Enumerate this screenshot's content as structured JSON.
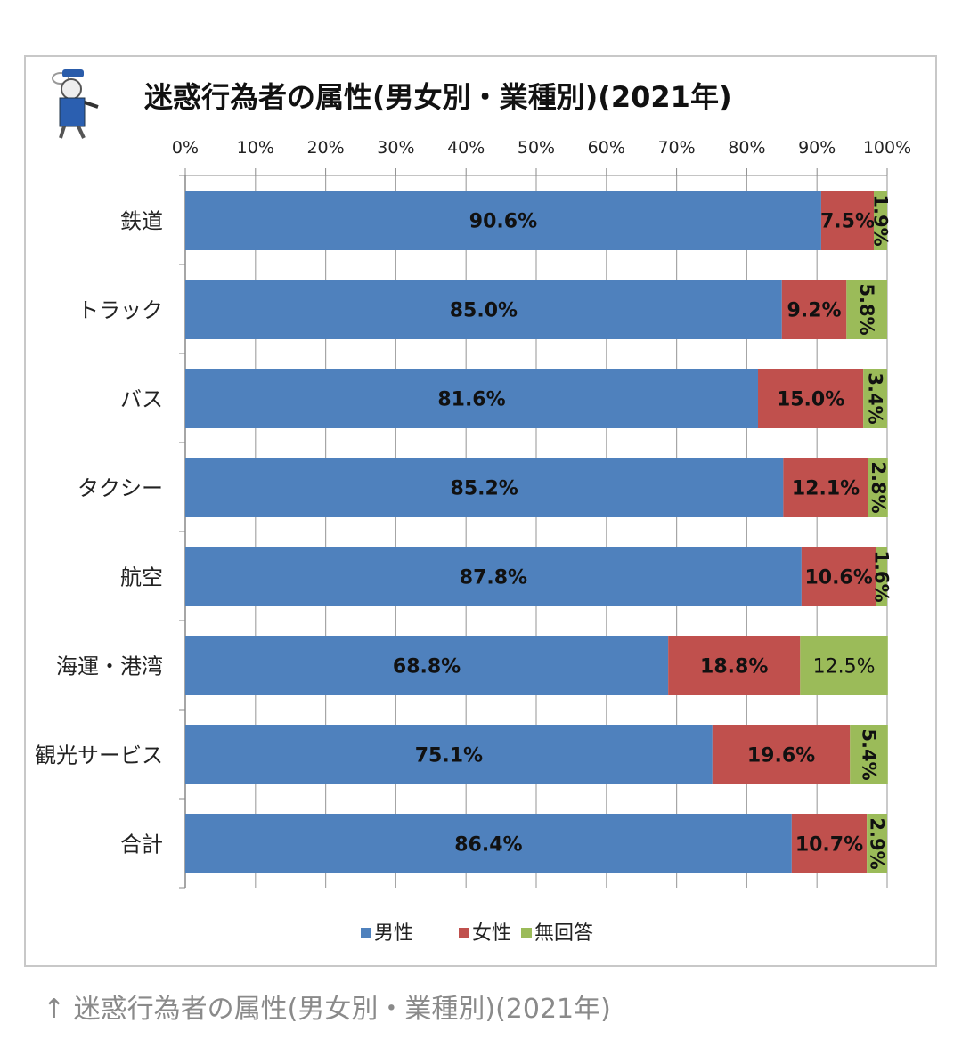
{
  "caption": "↑ 迷惑行為者の属性(男女別・業種別)(2021年)",
  "colors": {
    "male": "#4f81bd",
    "female": "#c0504d",
    "no_answer": "#9bbb59"
  },
  "logo": "mascot-illustration",
  "chart_data": {
    "type": "bar",
    "orientation": "horizontal",
    "stacked": "percent",
    "title": "迷惑行為者の属性(男女別・業種別)(2021年)",
    "categories": [
      "鉄道",
      "トラック",
      "バス",
      "タクシー",
      "航空",
      "海運・港湾",
      "観光サービス",
      "合計"
    ],
    "series": [
      {
        "name": "男性",
        "values": [
          90.6,
          85.0,
          81.6,
          85.2,
          87.8,
          68.8,
          75.1,
          86.4
        ]
      },
      {
        "name": "女性",
        "values": [
          7.5,
          9.2,
          15.0,
          12.1,
          10.6,
          18.8,
          19.6,
          10.7
        ]
      },
      {
        "name": "無回答",
        "values": [
          1.9,
          5.8,
          3.4,
          2.8,
          1.6,
          12.5,
          5.4,
          2.9
        ]
      }
    ],
    "xlim": [
      0,
      100
    ],
    "xticks": [
      "0%",
      "10%",
      "20%",
      "30%",
      "40%",
      "50%",
      "60%",
      "70%",
      "80%",
      "90%",
      "100%"
    ],
    "axis_position": "top",
    "grid": true,
    "legend": "bottom"
  }
}
